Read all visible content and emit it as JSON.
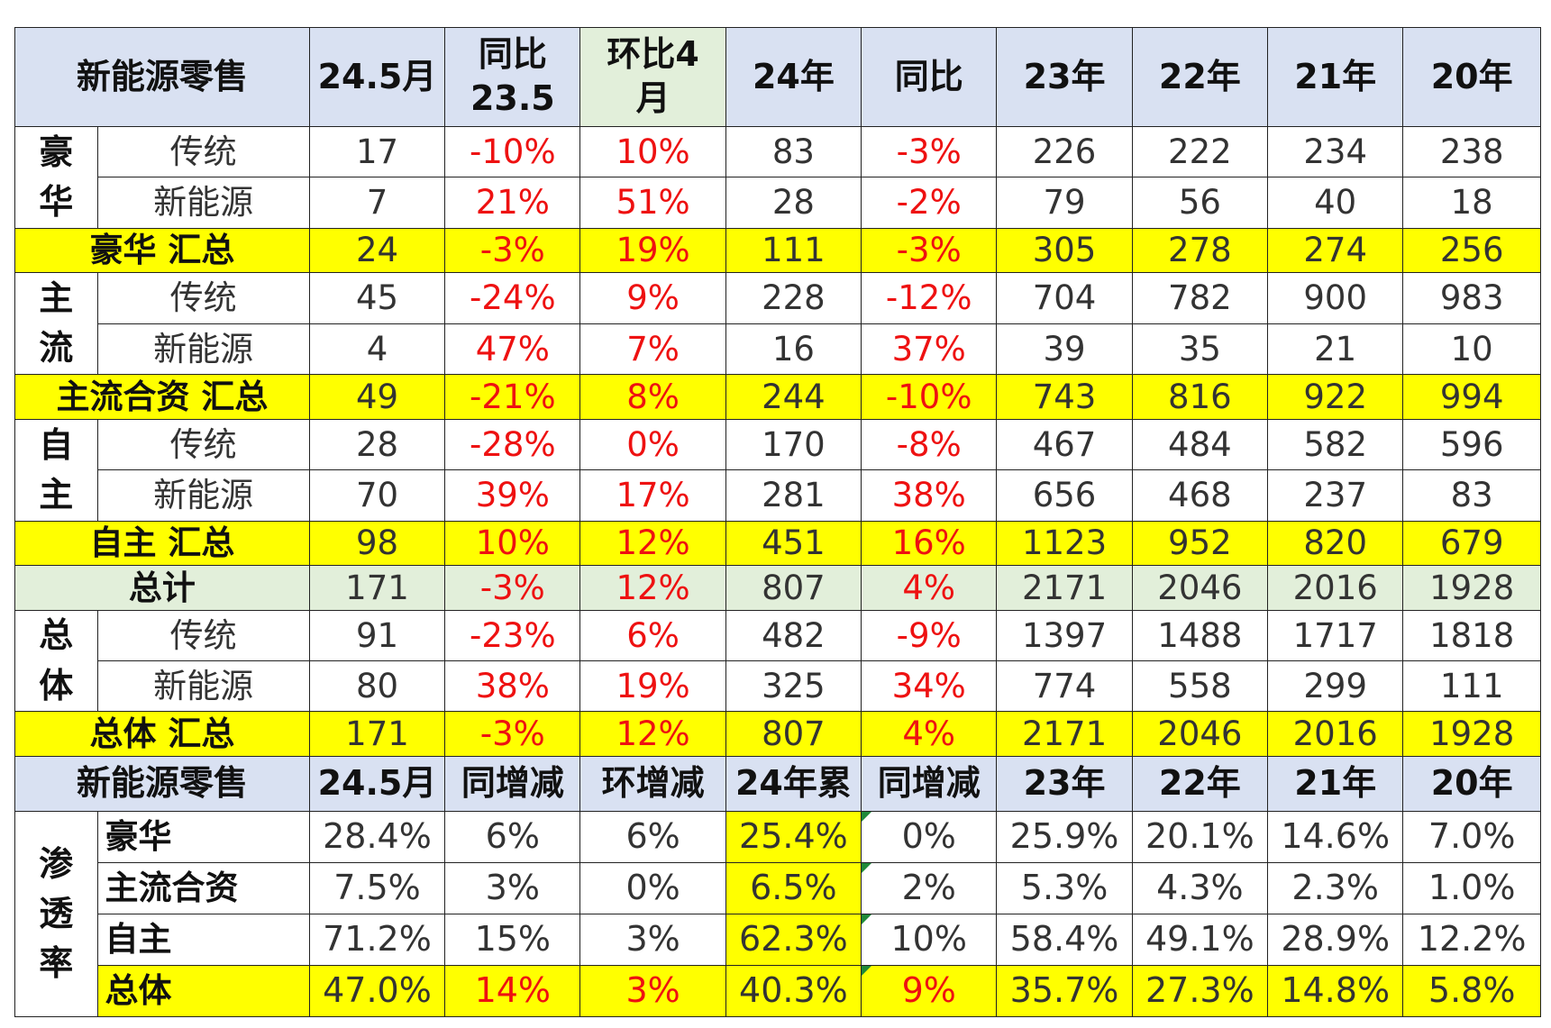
{
  "chart_data": {
    "type": "table",
    "header1": [
      "新能源零售",
      "24.5月",
      "同比23.5",
      "环比4月",
      "24年",
      "同比",
      "23年",
      "22年",
      "21年",
      "20年"
    ],
    "header1_display": [
      "新能源零售",
      "24.5月",
      "同比\n23.5",
      "环比4\n月",
      "24年",
      "同比",
      "23年",
      "22年",
      "21年",
      "20年"
    ],
    "sales_groups": [
      {
        "group": "豪华",
        "group_display": "豪\n华",
        "rows": [
          {
            "label": "传统",
            "values": [
              "17",
              "-10%",
              "10%",
              "83",
              "-3%",
              "226",
              "222",
              "234",
              "238"
            ]
          },
          {
            "label": "新能源",
            "values": [
              "7",
              "21%",
              "51%",
              "28",
              "-2%",
              "79",
              "56",
              "40",
              "18"
            ]
          }
        ],
        "subtotal": {
          "label": "豪华 汇总",
          "values": [
            "24",
            "-3%",
            "19%",
            "111",
            "-3%",
            "305",
            "278",
            "274",
            "256"
          ]
        }
      },
      {
        "group": "主流",
        "group_display": "主\n流",
        "rows": [
          {
            "label": "传统",
            "values": [
              "45",
              "-24%",
              "9%",
              "228",
              "-12%",
              "704",
              "782",
              "900",
              "983"
            ]
          },
          {
            "label": "新能源",
            "values": [
              "4",
              "47%",
              "7%",
              "16",
              "37%",
              "39",
              "35",
              "21",
              "10"
            ]
          }
        ],
        "subtotal": {
          "label": "主流合资 汇总",
          "values": [
            "49",
            "-21%",
            "8%",
            "244",
            "-10%",
            "743",
            "816",
            "922",
            "994"
          ]
        }
      },
      {
        "group": "自主",
        "group_display": "自\n主",
        "rows": [
          {
            "label": "传统",
            "values": [
              "28",
              "-28%",
              "0%",
              "170",
              "-8%",
              "467",
              "484",
              "582",
              "596"
            ]
          },
          {
            "label": "新能源",
            "values": [
              "70",
              "39%",
              "17%",
              "281",
              "38%",
              "656",
              "468",
              "237",
              "83"
            ]
          }
        ],
        "subtotal": {
          "label": "自主 汇总",
          "values": [
            "98",
            "10%",
            "12%",
            "451",
            "16%",
            "1123",
            "952",
            "820",
            "679"
          ]
        }
      }
    ],
    "grand_total": {
      "label": "总计",
      "values": [
        "171",
        "-3%",
        "12%",
        "807",
        "4%",
        "2171",
        "2046",
        "2016",
        "1928"
      ]
    },
    "overall_group": {
      "group": "总体",
      "group_display": "总\n体",
      "rows": [
        {
          "label": "传统",
          "values": [
            "91",
            "-23%",
            "6%",
            "482",
            "-9%",
            "1397",
            "1488",
            "1717",
            "1818"
          ]
        },
        {
          "label": "新能源",
          "values": [
            "80",
            "38%",
            "19%",
            "325",
            "34%",
            "774",
            "558",
            "299",
            "111"
          ]
        }
      ],
      "subtotal": {
        "label": "总体 汇总",
        "values": [
          "171",
          "-3%",
          "12%",
          "807",
          "4%",
          "2171",
          "2046",
          "2016",
          "1928"
        ]
      }
    },
    "header2": [
      "新能源零售",
      "24.5月",
      "同增减",
      "环增减",
      "24年累",
      "同增减",
      "23年",
      "22年",
      "21年",
      "20年"
    ],
    "penetration": {
      "group": "渗透率",
      "group_display": "渗\n透\n率",
      "rows": [
        {
          "label": "豪华",
          "values": [
            "28.4%",
            "6%",
            "6%",
            "25.4%",
            "0%",
            "25.9%",
            "20.1%",
            "14.6%",
            "7.0%"
          ]
        },
        {
          "label": "主流合资",
          "values": [
            "7.5%",
            "3%",
            "0%",
            "6.5%",
            "2%",
            "5.3%",
            "4.3%",
            "2.3%",
            "1.0%"
          ]
        },
        {
          "label": "自主",
          "values": [
            "71.2%",
            "15%",
            "3%",
            "62.3%",
            "10%",
            "58.4%",
            "49.1%",
            "28.9%",
            "12.2%"
          ]
        },
        {
          "label": "总体",
          "values": [
            "47.0%",
            "14%",
            "3%",
            "40.3%",
            "9%",
            "35.7%",
            "27.3%",
            "14.8%",
            "5.8%"
          ]
        }
      ]
    },
    "colors": {
      "header_bg": "#d9e1f2",
      "highlight_yellow": "#ffff00",
      "total_green": "#e2efda",
      "percent_red": "#ee1111",
      "text": "#333333"
    }
  }
}
